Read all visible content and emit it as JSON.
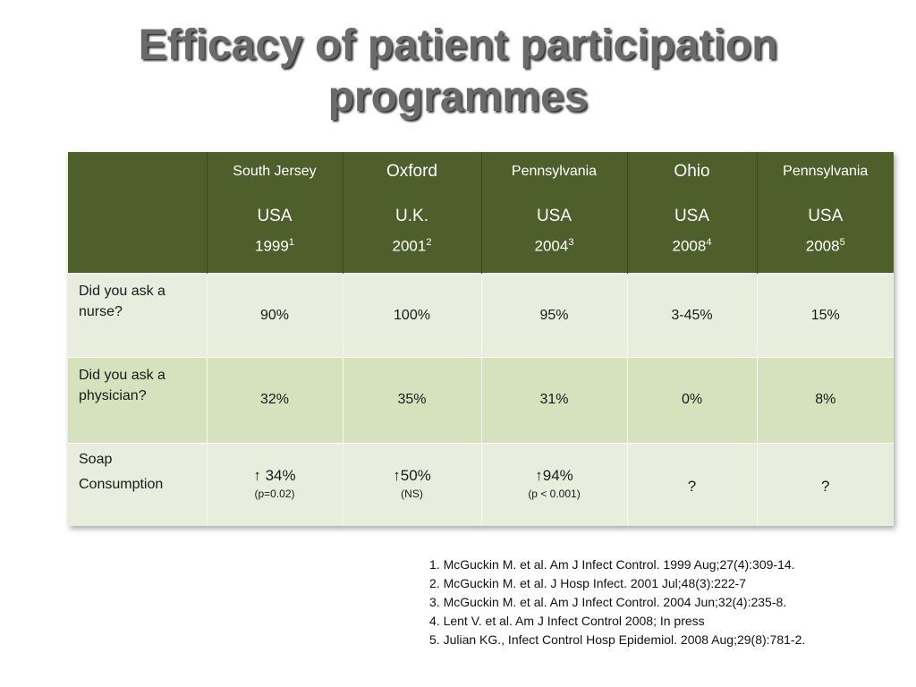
{
  "slide": {
    "title_line1": "Efficacy of patient participation",
    "title_line2": "programmes"
  },
  "table": {
    "columns": [
      {
        "location": "South Jersey",
        "country": "USA",
        "year": "1999",
        "ref": "1"
      },
      {
        "location": "Oxford",
        "country": "U.K.",
        "year": "2001",
        "ref": "2"
      },
      {
        "location": "Pennsylvania",
        "country": "USA",
        "year": "2004",
        "ref": "3"
      },
      {
        "location": "Ohio",
        "country": "USA",
        "year": "2008",
        "ref": "4"
      },
      {
        "location": "Pennsylvania",
        "country": "USA",
        "year": "2008",
        "ref": "5"
      }
    ],
    "rows": [
      {
        "label": "Did you ask a nurse?",
        "values": [
          "90%",
          "100%",
          "95%",
          "3-45%",
          "15%"
        ]
      },
      {
        "label": "Did you ask a physician?",
        "values": [
          "32%",
          "35%",
          "31%",
          "0%",
          "8%"
        ]
      },
      {
        "label_line1": "Soap",
        "label_line2": "Consumption",
        "cells": [
          {
            "main": "↑ 34%",
            "note": "(p=0.02)"
          },
          {
            "main": "↑50%",
            "note": "(NS)"
          },
          {
            "main": "↑94%",
            "note": "(p < 0.001)"
          },
          {
            "main": "?",
            "note": ""
          },
          {
            "main": "?",
            "note": ""
          }
        ]
      }
    ]
  },
  "references": [
    "1. McGuckin M. et al. Am J Infect Control. 1999 Aug;27(4):309-14.",
    "2. McGuckin M. et al. J Hosp Infect. 2001 Jul;48(3):222-7",
    "3. McGuckin M. et al. Am J Infect Control. 2004 Jun;32(4):235-8.",
    "4. Lent V. et al. Am J Infect Control 2008; In press",
    "5. Julian KG., Infect Control Hosp Epidemiol. 2008 Aug;29(8):781-2."
  ]
}
